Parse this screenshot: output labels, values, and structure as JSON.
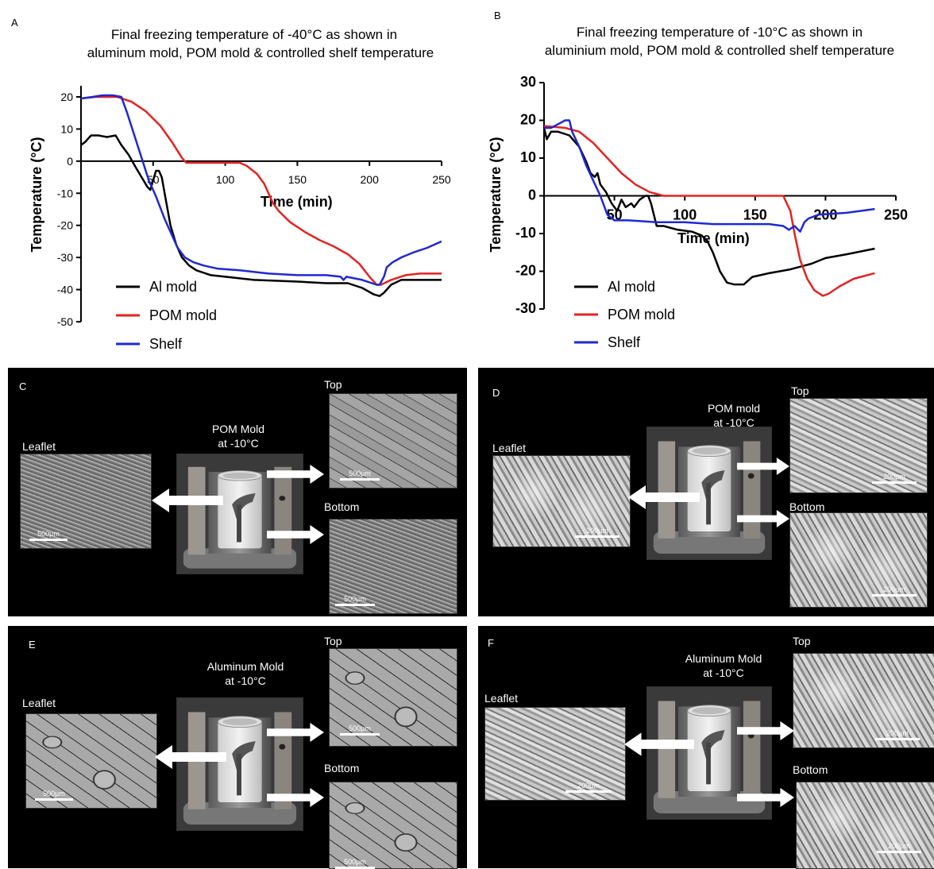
{
  "chart_data": [
    {
      "panel_label": "A",
      "type": "line",
      "title": "Final freezing temperature of -40°C as shown in\naluminum mold, POM mold & controlled shelf temperature",
      "xlabel": "Time (min)",
      "ylabel": "Temperature (°C)",
      "xlim": [
        0,
        250
      ],
      "ylim": [
        -50,
        25
      ],
      "xticks": [
        "50",
        "100",
        "150",
        "200",
        "250"
      ],
      "yticks": [
        "20",
        "10",
        "0",
        "-10",
        "-20",
        "-30",
        "-40",
        "-50"
      ],
      "legend": [
        "Al mold",
        "POM mold",
        "Shelf"
      ],
      "legend_position": "bottom-left",
      "series": [
        {
          "name": "Al mold",
          "color": "#000000",
          "points": [
            [
              0,
              5
            ],
            [
              3,
              6
            ],
            [
              7,
              8
            ],
            [
              12,
              8
            ],
            [
              18,
              7.5
            ],
            [
              24,
              8
            ],
            [
              28,
              5
            ],
            [
              33,
              2
            ],
            [
              38,
              -2
            ],
            [
              42,
              -5
            ],
            [
              46,
              -8
            ],
            [
              48,
              -9
            ],
            [
              50,
              -6
            ],
            [
              52,
              -3
            ],
            [
              54,
              -3
            ],
            [
              56,
              -5
            ],
            [
              58,
              -10
            ],
            [
              62,
              -20
            ],
            [
              66,
              -26
            ],
            [
              70,
              -30
            ],
            [
              75,
              -32.5
            ],
            [
              80,
              -34
            ],
            [
              90,
              -35.5
            ],
            [
              100,
              -36
            ],
            [
              120,
              -37
            ],
            [
              150,
              -37.5
            ],
            [
              170,
              -38
            ],
            [
              185,
              -38
            ],
            [
              195,
              -39.5
            ],
            [
              203,
              -41.5
            ],
            [
              207,
              -42
            ],
            [
              210,
              -41
            ],
            [
              215,
              -38.5
            ],
            [
              222,
              -37
            ],
            [
              235,
              -37
            ],
            [
              250,
              -37
            ]
          ]
        },
        {
          "name": "POM mold",
          "color": "#e52222",
          "points": [
            [
              0,
              19.5
            ],
            [
              10,
              20
            ],
            [
              25,
              20
            ],
            [
              35,
              18.5
            ],
            [
              45,
              15.5
            ],
            [
              55,
              11
            ],
            [
              63,
              6
            ],
            [
              70,
              1
            ],
            [
              73,
              -0.5
            ],
            [
              80,
              -0.5
            ],
            [
              90,
              -0.5
            ],
            [
              100,
              -0.5
            ],
            [
              110,
              -0.5
            ],
            [
              115,
              -1.5
            ],
            [
              122,
              -4
            ],
            [
              127,
              -7
            ],
            [
              130,
              -10
            ],
            [
              133,
              -13
            ],
            [
              137,
              -15.5
            ],
            [
              145,
              -19
            ],
            [
              155,
              -22
            ],
            [
              165,
              -24.5
            ],
            [
              175,
              -26.5
            ],
            [
              185,
              -29
            ],
            [
              193,
              -32
            ],
            [
              200,
              -36
            ],
            [
              205,
              -38.5
            ],
            [
              208,
              -38.5
            ],
            [
              215,
              -37
            ],
            [
              225,
              -35.5
            ],
            [
              235,
              -35
            ],
            [
              250,
              -35
            ]
          ]
        },
        {
          "name": "Shelf",
          "color": "#1e28d4",
          "points": [
            [
              0,
              19.5
            ],
            [
              8,
              20
            ],
            [
              15,
              20.5
            ],
            [
              22,
              20.5
            ],
            [
              28,
              20
            ],
            [
              32,
              15
            ],
            [
              37,
              8
            ],
            [
              42,
              1
            ],
            [
              47,
              -6
            ],
            [
              52,
              -11
            ],
            [
              58,
              -18
            ],
            [
              63,
              -23
            ],
            [
              67,
              -27
            ],
            [
              72,
              -30
            ],
            [
              78,
              -31.5
            ],
            [
              85,
              -32.5
            ],
            [
              95,
              -33.5
            ],
            [
              110,
              -34
            ],
            [
              130,
              -35
            ],
            [
              150,
              -35.5
            ],
            [
              170,
              -35.5
            ],
            [
              180,
              -36
            ],
            [
              182,
              -37
            ],
            [
              184,
              -36
            ],
            [
              195,
              -37
            ],
            [
              205,
              -38.5
            ],
            [
              207,
              -38.5
            ],
            [
              210,
              -36
            ],
            [
              212,
              -33
            ],
            [
              216,
              -31.5
            ],
            [
              222,
              -30
            ],
            [
              230,
              -28.5
            ],
            [
              240,
              -27
            ],
            [
              250,
              -25
            ]
          ]
        }
      ]
    },
    {
      "panel_label": "B",
      "type": "line",
      "title": "Final freezing temperature of -10°C as shown in\naluminium mold, POM mold & controlled shelf temperature",
      "xlabel": "Time (min)",
      "ylabel": "Temperature (°C)",
      "xlim": [
        0,
        250
      ],
      "ylim": [
        -30,
        30
      ],
      "xticks": [
        "50",
        "100",
        "150",
        "200",
        "250"
      ],
      "yticks": [
        "30",
        "20",
        "10",
        "0",
        "-10",
        "-20",
        "-30"
      ],
      "legend": [
        "Al mold",
        "POM mold",
        "Shelf"
      ],
      "legend_position": "bottom-left",
      "series": [
        {
          "name": "Al mold",
          "color": "#000000",
          "points": [
            [
              0,
              18
            ],
            [
              2,
              15
            ],
            [
              5,
              17
            ],
            [
              10,
              17
            ],
            [
              18,
              16
            ],
            [
              25,
              13
            ],
            [
              30,
              9
            ],
            [
              33,
              6
            ],
            [
              36,
              5
            ],
            [
              38,
              6
            ],
            [
              40,
              3
            ],
            [
              44,
              1
            ],
            [
              48,
              -2
            ],
            [
              52,
              -4
            ],
            [
              55,
              -1
            ],
            [
              58,
              -3
            ],
            [
              62,
              -2
            ],
            [
              64,
              -3
            ],
            [
              68,
              -1
            ],
            [
              72,
              0
            ],
            [
              74,
              0
            ],
            [
              76,
              -2
            ],
            [
              80,
              -8
            ],
            [
              85,
              -8
            ],
            [
              95,
              -9
            ],
            [
              105,
              -9.5
            ],
            [
              112,
              -10.5
            ],
            [
              116,
              -12
            ],
            [
              120,
              -15
            ],
            [
              125,
              -20
            ],
            [
              130,
              -23
            ],
            [
              135,
              -23.5
            ],
            [
              142,
              -23.5
            ],
            [
              148,
              -21.5
            ],
            [
              160,
              -20.5
            ],
            [
              175,
              -19.5
            ],
            [
              190,
              -18
            ],
            [
              200,
              -16.5
            ],
            [
              215,
              -15.5
            ],
            [
              235,
              -14
            ]
          ]
        },
        {
          "name": "POM mold",
          "color": "#e52222",
          "points": [
            [
              0,
              18.5
            ],
            [
              15,
              18
            ],
            [
              25,
              17
            ],
            [
              35,
              14
            ],
            [
              45,
              10
            ],
            [
              55,
              6
            ],
            [
              65,
              3
            ],
            [
              75,
              1
            ],
            [
              85,
              0
            ],
            [
              100,
              0
            ],
            [
              120,
              0
            ],
            [
              140,
              0
            ],
            [
              160,
              0
            ],
            [
              170,
              0
            ],
            [
              175,
              -4
            ],
            [
              178,
              -10
            ],
            [
              182,
              -17
            ],
            [
              187,
              -22
            ],
            [
              192,
              -25
            ],
            [
              198,
              -26.5
            ],
            [
              202,
              -26
            ],
            [
              210,
              -24
            ],
            [
              220,
              -22
            ],
            [
              235,
              -20.5
            ]
          ]
        },
        {
          "name": "Shelf",
          "color": "#1e28d4",
          "points": [
            [
              0,
              18
            ],
            [
              5,
              18
            ],
            [
              10,
              19
            ],
            [
              15,
              20
            ],
            [
              18,
              20
            ],
            [
              20,
              17
            ],
            [
              25,
              13
            ],
            [
              30,
              8
            ],
            [
              35,
              4
            ],
            [
              40,
              0
            ],
            [
              45,
              -5
            ],
            [
              50,
              -6.5
            ],
            [
              60,
              -6.5
            ],
            [
              80,
              -7
            ],
            [
              100,
              -7
            ],
            [
              120,
              -7.5
            ],
            [
              140,
              -7.5
            ],
            [
              160,
              -7.5
            ],
            [
              170,
              -8
            ],
            [
              174,
              -9
            ],
            [
              178,
              -8
            ],
            [
              182,
              -9.5
            ],
            [
              185,
              -7
            ],
            [
              188,
              -6
            ],
            [
              195,
              -5
            ],
            [
              215,
              -4.5
            ],
            [
              235,
              -3.5
            ]
          ]
        }
      ]
    }
  ],
  "panels": [
    {
      "label": "C",
      "center_label": "POM Mold\nat -10°C",
      "leaflet_label": "Leaflet",
      "top_label": "Top",
      "bottom_label": "Bottom",
      "scale_leaflet": "500µm",
      "scale_top": "500µm",
      "scale_bottom": "500µm"
    },
    {
      "label": "D",
      "center_label": "POM mold\nat -10°C",
      "leaflet_label": "Leaflet",
      "top_label": "Top",
      "bottom_label": "Bottom",
      "scale_leaflet": "200µm",
      "scale_top": "200µm",
      "scale_bottom": "200µm"
    },
    {
      "label": "E",
      "center_label": "Aluminum Mold\nat -10°C",
      "leaflet_label": "Leaflet",
      "top_label": "Top",
      "bottom_label": "Bottom",
      "scale_leaflet": "500µm",
      "scale_top": "500µm",
      "scale_bottom": "500µm"
    },
    {
      "label": "F",
      "center_label": "Aluminum Mold\nat -10°C",
      "leaflet_label": "Leaflet",
      "top_label": "Top",
      "bottom_label": "Bottom",
      "scale_leaflet": "200µm",
      "scale_top": "200µm",
      "scale_bottom": "200µm"
    }
  ]
}
